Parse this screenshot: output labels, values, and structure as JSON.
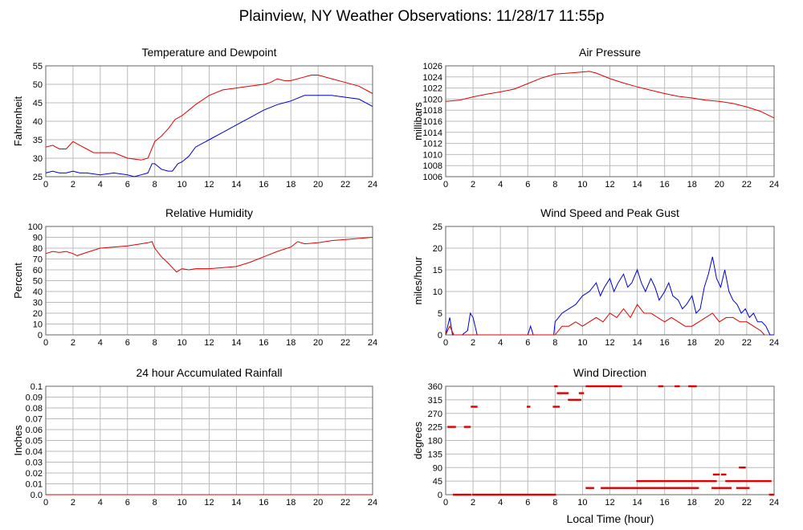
{
  "title": "Plainview, NY Weather Observations: 11/28/17 11:55p",
  "xlabel": "Local Time (hour)",
  "colors": {
    "red": "#e00000",
    "blue": "#0000d0"
  },
  "chart_data": [
    {
      "id": "temp",
      "type": "line",
      "title": "Temperature and Dewpoint",
      "ylabel": "Fahrenheit",
      "xlim": [
        0,
        24
      ],
      "ylim": [
        25,
        55
      ],
      "yticks": [
        25,
        30,
        35,
        40,
        45,
        50,
        55
      ],
      "xticks": [
        0,
        2,
        4,
        6,
        8,
        10,
        12,
        14,
        16,
        18,
        20,
        22,
        24
      ],
      "series": [
        {
          "color": "red",
          "x": [
            0,
            0.5,
            1,
            1.5,
            2,
            2.5,
            3,
            3.5,
            4,
            5,
            6,
            7,
            7.5,
            8,
            8.5,
            9,
            9.5,
            10,
            10.5,
            11,
            12,
            13,
            14,
            15,
            16,
            16.5,
            17,
            17.5,
            18,
            19,
            19.5,
            20,
            21,
            22,
            23,
            24
          ],
          "y": [
            33,
            33.5,
            32.5,
            32.5,
            34.5,
            33.5,
            32.5,
            31.5,
            31.5,
            31.5,
            30,
            29.5,
            30,
            34.5,
            36,
            38,
            40.5,
            41.5,
            43,
            44.5,
            47,
            48.5,
            49,
            49.5,
            50,
            50.5,
            51.5,
            51,
            51,
            52,
            52.5,
            52.5,
            51.5,
            50.5,
            49.5,
            47.5
          ]
        },
        {
          "color": "blue",
          "x": [
            0,
            0.5,
            1,
            1.5,
            2,
            2.5,
            3,
            4,
            5,
            6,
            6.5,
            7,
            7.5,
            7.8,
            8,
            8.5,
            9,
            9.3,
            9.7,
            10,
            10.5,
            11,
            12,
            13,
            14,
            15,
            16,
            17,
            18,
            19,
            20,
            21,
            22,
            23,
            24
          ],
          "y": [
            26,
            26.5,
            26,
            26,
            26.5,
            26,
            26,
            25.5,
            26,
            25.5,
            25,
            25.5,
            26,
            28.5,
            28.5,
            27,
            26.5,
            26.5,
            28.5,
            29,
            30.5,
            33,
            35,
            37,
            39,
            41,
            43,
            44.5,
            45.5,
            47,
            47,
            47,
            46.5,
            46,
            44
          ]
        }
      ]
    },
    {
      "id": "pressure",
      "type": "line",
      "title": "Air Pressure",
      "ylabel": "millibars",
      "xlim": [
        0,
        24
      ],
      "ylim": [
        1006,
        1026
      ],
      "yticks": [
        1006,
        1008,
        1010,
        1012,
        1014,
        1016,
        1018,
        1020,
        1022,
        1024,
        1026
      ],
      "xticks": [
        0,
        2,
        4,
        6,
        8,
        10,
        12,
        14,
        16,
        18,
        20,
        22,
        24
      ],
      "series": [
        {
          "color": "red",
          "x": [
            0,
            1,
            2,
            3,
            4,
            5,
            6,
            7,
            8,
            9,
            10,
            10.5,
            11,
            12,
            13,
            14,
            15,
            16,
            17,
            18,
            19,
            20,
            21,
            22,
            23,
            24
          ],
          "y": [
            1019.6,
            1019.8,
            1020.4,
            1020.9,
            1021.3,
            1021.8,
            1022.8,
            1023.8,
            1024.5,
            1024.7,
            1024.9,
            1025,
            1024.7,
            1023.7,
            1022.9,
            1022.2,
            1021.6,
            1021,
            1020.5,
            1020.2,
            1019.8,
            1019.6,
            1019.2,
            1018.6,
            1017.8,
            1016.6
          ]
        }
      ]
    },
    {
      "id": "humidity",
      "type": "line",
      "title": "Relative Humidity",
      "ylabel": "Percent",
      "xlim": [
        0,
        24
      ],
      "ylim": [
        0,
        100
      ],
      "yticks": [
        0,
        10,
        20,
        30,
        40,
        50,
        60,
        70,
        80,
        90,
        100
      ],
      "xticks": [
        0,
        2,
        4,
        6,
        8,
        10,
        12,
        14,
        16,
        18,
        20,
        22,
        24
      ],
      "series": [
        {
          "color": "red",
          "x": [
            0,
            0.5,
            1,
            1.5,
            2,
            2.3,
            3,
            4,
            5,
            6,
            7,
            7.5,
            7.8,
            8,
            8.5,
            9,
            9.3,
            9.6,
            10,
            10.5,
            11,
            12,
            13,
            14,
            15,
            16,
            17,
            18,
            18.5,
            19,
            20,
            21,
            22,
            23,
            24
          ],
          "y": [
            75,
            77,
            76,
            77,
            75,
            73,
            76,
            80,
            81,
            82,
            84,
            85,
            86,
            80,
            72,
            66,
            62,
            58,
            61,
            60,
            61,
            61,
            62,
            63,
            67,
            72,
            77,
            81,
            86,
            84,
            85,
            87,
            88,
            89,
            90
          ]
        }
      ]
    },
    {
      "id": "wind",
      "type": "line",
      "title": "Wind Speed and Peak Gust",
      "ylabel": "miles/hour",
      "xlim": [
        0,
        24
      ],
      "ylim": [
        0,
        25
      ],
      "yticks": [
        0,
        5,
        10,
        15,
        20,
        25
      ],
      "xticks": [
        0,
        2,
        4,
        6,
        8,
        10,
        12,
        14,
        16,
        18,
        20,
        22,
        24
      ],
      "series": [
        {
          "color": "blue",
          "x": [
            0,
            0.3,
            0.5,
            0.8,
            1.2,
            1.6,
            1.8,
            2,
            2.3,
            2.6,
            6,
            6.2,
            6.4,
            7.9,
            8,
            8.5,
            9,
            9.5,
            10,
            10.5,
            11,
            11.3,
            11.6,
            12,
            12.3,
            12.6,
            13,
            13.3,
            13.6,
            14,
            14.3,
            14.6,
            15,
            15.3,
            15.6,
            16,
            16.3,
            16.6,
            17,
            17.3,
            17.6,
            18,
            18.3,
            18.6,
            18.9,
            19.2,
            19.5,
            19.8,
            20.1,
            20.4,
            20.7,
            21,
            21.3,
            21.6,
            21.9,
            22.2,
            22.5,
            22.8,
            23.1,
            23.4,
            23.7,
            24
          ],
          "y": [
            0,
            4,
            0,
            0,
            0,
            1,
            5,
            4,
            0,
            0,
            0,
            2,
            0,
            0,
            3,
            5,
            6,
            7,
            9,
            10,
            12,
            9,
            11,
            13,
            10,
            12,
            14,
            11,
            12,
            15,
            12,
            10,
            13,
            11,
            8,
            10,
            12,
            9,
            8,
            6,
            7,
            9,
            5,
            6,
            11,
            14,
            18,
            13,
            11,
            15,
            10,
            8,
            7,
            5,
            6,
            4,
            5,
            3,
            3,
            2,
            0,
            0
          ]
        },
        {
          "color": "red",
          "x": [
            0,
            0.3,
            0.6,
            2,
            2.2,
            8,
            8.5,
            9,
            9.5,
            10,
            10.5,
            11,
            11.5,
            12,
            12.5,
            13,
            13.5,
            14,
            14.5,
            15,
            15.5,
            16,
            16.5,
            17,
            17.5,
            18,
            18.5,
            19,
            19.5,
            20,
            20.5,
            21,
            21.5,
            22,
            22.5,
            23,
            23.3
          ],
          "y": [
            0,
            2,
            0,
            0,
            0,
            0,
            2,
            2,
            3,
            2,
            3,
            4,
            3,
            5,
            4,
            6,
            4,
            7,
            5,
            5,
            4,
            3,
            4,
            3,
            2,
            2,
            3,
            4,
            5,
            3,
            4,
            4,
            3,
            3,
            2,
            1,
            0
          ]
        }
      ]
    },
    {
      "id": "rain",
      "type": "line",
      "title": "24 hour Accumulated Rainfall",
      "ylabel": "Inches",
      "xlim": [
        0,
        24
      ],
      "ylim": [
        0,
        0.1
      ],
      "yticks": [
        0,
        0.01,
        0.02,
        0.03,
        0.04,
        0.05,
        0.06,
        0.07,
        0.08,
        0.09,
        0.1
      ],
      "ytick_labels": [
        "0.0",
        "0.01",
        "0.02",
        "0.03",
        "0.04",
        "0.05",
        "0.06",
        "0.07",
        "0.08",
        "0.09",
        "0.1"
      ],
      "xticks": [
        0,
        2,
        4,
        6,
        8,
        10,
        12,
        14,
        16,
        18,
        20,
        22,
        24
      ],
      "series": [
        {
          "color": "red",
          "x": [
            0,
            24
          ],
          "y": [
            0,
            0
          ]
        }
      ]
    },
    {
      "id": "direction",
      "type": "scatter",
      "title": "Wind Direction",
      "ylabel": "degrees",
      "xlabel": "Local Time (hour)",
      "xlim": [
        0,
        24
      ],
      "ylim": [
        0,
        360
      ],
      "yticks": [
        0,
        45,
        90,
        135,
        180,
        225,
        270,
        315,
        360
      ],
      "xticks": [
        0,
        2,
        4,
        6,
        8,
        10,
        12,
        14,
        16,
        18,
        20,
        22,
        24
      ],
      "series": [
        {
          "color": "red",
          "segments": [
            {
              "x0": 0.2,
              "x1": 0.7,
              "y": 225
            },
            {
              "x0": 1.4,
              "x1": 1.8,
              "y": 225
            },
            {
              "x0": 1.9,
              "x1": 2.3,
              "y": 292
            },
            {
              "x0": 0.6,
              "x1": 1.8,
              "y": 0
            },
            {
              "x0": 2.0,
              "x1": 8.0,
              "y": 0
            },
            {
              "x0": 6.0,
              "x1": 6.2,
              "y": 292
            },
            {
              "x0": 7.9,
              "x1": 8.3,
              "y": 292
            },
            {
              "x0": 8.2,
              "x1": 9.0,
              "y": 337
            },
            {
              "x0": 9.0,
              "x1": 9.9,
              "y": 315
            },
            {
              "x0": 8.0,
              "x1": 8.2,
              "y": 360
            },
            {
              "x0": 9.8,
              "x1": 10.1,
              "y": 337
            },
            {
              "x0": 10.3,
              "x1": 12.9,
              "y": 360
            },
            {
              "x0": 10.3,
              "x1": 10.8,
              "y": 22
            },
            {
              "x0": 11.4,
              "x1": 14.0,
              "y": 22
            },
            {
              "x0": 14.0,
              "x1": 18.2,
              "y": 45
            },
            {
              "x0": 14.0,
              "x1": 18.5,
              "y": 22
            },
            {
              "x0": 15.6,
              "x1": 15.9,
              "y": 360
            },
            {
              "x0": 16.8,
              "x1": 17.1,
              "y": 360
            },
            {
              "x0": 17.8,
              "x1": 18.3,
              "y": 360
            },
            {
              "x0": 18.3,
              "x1": 19.8,
              "y": 45
            },
            {
              "x0": 19.6,
              "x1": 20.0,
              "y": 67
            },
            {
              "x0": 20.2,
              "x1": 20.5,
              "y": 67
            },
            {
              "x0": 19.5,
              "x1": 20.9,
              "y": 22
            },
            {
              "x0": 20.5,
              "x1": 23.8,
              "y": 45
            },
            {
              "x0": 21.5,
              "x1": 21.9,
              "y": 90
            },
            {
              "x0": 21.3,
              "x1": 22.2,
              "y": 22
            },
            {
              "x0": 23.7,
              "x1": 24.0,
              "y": 0
            }
          ]
        }
      ]
    }
  ]
}
